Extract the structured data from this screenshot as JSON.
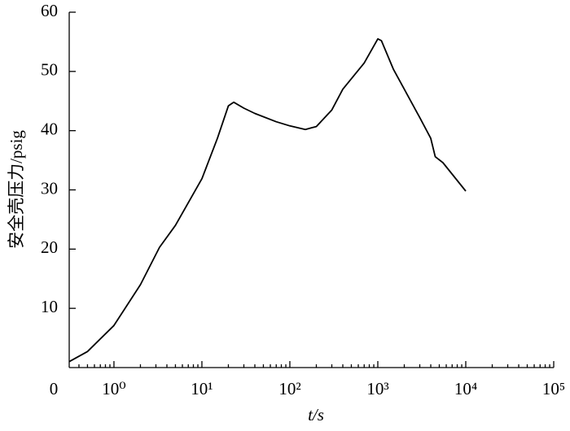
{
  "chart_data": {
    "type": "line",
    "xlabel": "t/s",
    "ylabel": "安全壳压力/psig",
    "x": [
      0.31,
      0.5,
      1,
      2,
      3.3,
      5,
      10,
      15,
      20,
      23,
      30,
      40,
      70,
      100,
      150,
      200,
      300,
      400,
      700,
      1000,
      1100,
      1500,
      2000,
      3000,
      4000,
      4500,
      5500,
      10000
    ],
    "series": [
      {
        "name": "安全壳压力",
        "color": "#000000",
        "values": [
          1,
          2.7,
          7.1,
          14,
          20.3,
          24,
          31.9,
          38.7,
          44.2,
          44.8,
          43.8,
          42.9,
          41.5,
          40.8,
          40.2,
          40.7,
          43.5,
          47,
          51.4,
          55.5,
          55.2,
          50.4,
          47,
          42.2,
          38.7,
          35.6,
          34.6,
          29.8
        ]
      }
    ],
    "xlog": true,
    "xlim": [
      0.31,
      100000
    ],
    "xticks": [
      {
        "value": 1,
        "label": "10⁰"
      },
      {
        "value": 10,
        "label": "10¹"
      },
      {
        "value": 100,
        "label": "10²"
      },
      {
        "value": 1000,
        "label": "10³"
      },
      {
        "value": 10000,
        "label": "10⁴"
      },
      {
        "value": 100000,
        "label": "10⁵"
      }
    ],
    "xminorticks": [
      0.4,
      0.5,
      0.6,
      0.7,
      0.8,
      0.9,
      2,
      3,
      4,
      5,
      6,
      7,
      8,
      9,
      20,
      30,
      40,
      50,
      60,
      70,
      80,
      90,
      200,
      300,
      400,
      500,
      600,
      700,
      800,
      900,
      2000,
      3000,
      4000,
      5000,
      6000,
      7000,
      8000,
      9000,
      20000,
      30000,
      40000,
      50000,
      60000,
      70000,
      80000,
      90000
    ],
    "ylim": [
      0,
      60
    ],
    "yticks": [
      0,
      10,
      20,
      30,
      40,
      50,
      60
    ],
    "grid": false
  }
}
